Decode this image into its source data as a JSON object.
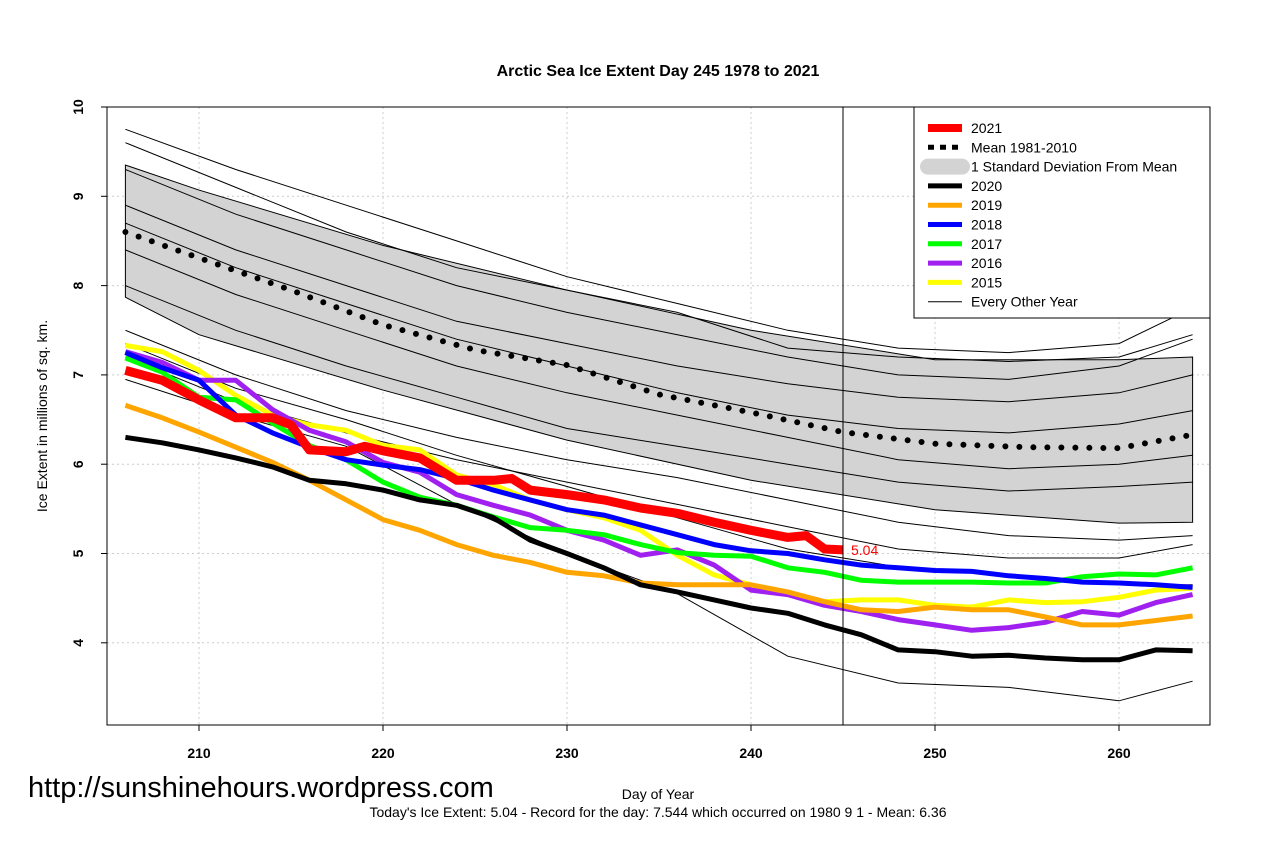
{
  "chart_data": {
    "type": "line",
    "title": "Arctic Sea Ice Extent Day 245 1978 to 2021",
    "xlabel": "Day of Year",
    "ylabel": "Ice Extent in millions of sq. km.",
    "xlim": [
      205,
      265
    ],
    "ylim": [
      3.08,
      10
    ],
    "xticks": [
      210,
      220,
      230,
      240,
      250,
      260
    ],
    "yticks": [
      4,
      5,
      6,
      7,
      8,
      9,
      10
    ],
    "grid": true,
    "legend_position": "top-right",
    "current_day_marker": 245,
    "end_label": "5.04",
    "x": [
      206,
      208,
      210,
      212,
      214,
      216,
      218,
      220,
      222,
      224,
      226,
      228,
      230,
      232,
      234,
      236,
      238,
      240,
      242,
      244,
      246,
      248,
      250,
      252,
      254,
      256,
      258,
      260,
      262,
      264
    ],
    "sd_band": {
      "name": "1 Standard Deviation From Mean",
      "color": "#d3d3d3",
      "x": [
        206,
        210,
        220,
        230,
        240,
        250,
        260,
        264
      ],
      "upper": [
        9.35,
        9.07,
        8.45,
        7.95,
        7.5,
        7.17,
        7.17,
        7.2
      ],
      "lower": [
        7.87,
        7.45,
        6.83,
        6.27,
        5.82,
        5.49,
        5.34,
        5.35
      ]
    },
    "mean": {
      "name": "Mean 1981-2010",
      "color": "#000000",
      "x": [
        206,
        210,
        215,
        220,
        225,
        230,
        235,
        240,
        245,
        250,
        255,
        260,
        264
      ],
      "values": [
        8.6,
        8.31,
        7.95,
        7.56,
        7.28,
        7.11,
        6.78,
        6.58,
        6.36,
        6.23,
        6.19,
        6.18,
        6.33
      ]
    },
    "series": [
      {
        "name": "2021",
        "color": "#ff0000",
        "x": [
          206,
          208,
          210,
          212,
          214,
          215,
          216,
          218,
          219,
          220,
          222,
          224,
          226,
          227,
          228,
          230,
          232,
          234,
          236,
          238,
          240,
          242,
          243,
          244,
          245
        ],
        "values": [
          7.05,
          6.94,
          6.72,
          6.52,
          6.52,
          6.44,
          6.16,
          6.14,
          6.2,
          6.15,
          6.07,
          5.82,
          5.82,
          5.84,
          5.71,
          5.66,
          5.6,
          5.51,
          5.45,
          5.35,
          5.26,
          5.18,
          5.2,
          5.05,
          5.04
        ]
      },
      {
        "name": "2020",
        "color": "#000000",
        "values": [
          6.3,
          6.24,
          6.16,
          6.07,
          5.97,
          5.82,
          5.78,
          5.71,
          5.6,
          5.54,
          5.4,
          5.15,
          5.0,
          4.84,
          4.65,
          4.57,
          4.48,
          4.39,
          4.33,
          4.2,
          4.09,
          3.92,
          3.9,
          3.85,
          3.86,
          3.83,
          3.81,
          3.81,
          3.92,
          3.91
        ]
      },
      {
        "name": "2019",
        "color": "#ffa500",
        "values": [
          6.66,
          6.52,
          6.36,
          6.19,
          6.02,
          5.82,
          5.6,
          5.38,
          5.26,
          5.1,
          4.98,
          4.9,
          4.79,
          4.75,
          4.67,
          4.65,
          4.65,
          4.65,
          4.57,
          4.46,
          4.37,
          4.35,
          4.4,
          4.37,
          4.37,
          4.29,
          4.2,
          4.2,
          4.25,
          4.3
        ]
      },
      {
        "name": "2018",
        "color": "#0000ff",
        "values": [
          7.25,
          7.08,
          6.94,
          6.55,
          6.35,
          6.19,
          6.05,
          5.99,
          5.94,
          5.84,
          5.71,
          5.6,
          5.49,
          5.43,
          5.32,
          5.21,
          5.1,
          5.03,
          5.0,
          4.93,
          4.87,
          4.84,
          4.81,
          4.8,
          4.75,
          4.72,
          4.68,
          4.67,
          4.65,
          4.62
        ]
      },
      {
        "name": "2017",
        "color": "#00ff00",
        "values": [
          7.19,
          7.03,
          6.75,
          6.72,
          6.46,
          6.21,
          6.05,
          5.8,
          5.63,
          5.54,
          5.41,
          5.29,
          5.26,
          5.21,
          5.1,
          5.01,
          4.98,
          4.97,
          4.84,
          4.79,
          4.7,
          4.68,
          4.68,
          4.68,
          4.67,
          4.67,
          4.74,
          4.77,
          4.76,
          4.84
        ]
      },
      {
        "name": "2016",
        "color": "#a020f0",
        "values": [
          7.26,
          7.14,
          6.94,
          6.94,
          6.61,
          6.38,
          6.25,
          6.02,
          5.91,
          5.66,
          5.54,
          5.43,
          5.26,
          5.15,
          4.98,
          5.04,
          4.87,
          4.59,
          4.54,
          4.42,
          4.35,
          4.26,
          4.2,
          4.14,
          4.17,
          4.23,
          4.35,
          4.31,
          4.45,
          4.54
        ]
      },
      {
        "name": "2015",
        "color": "#ffff00",
        "values": [
          7.33,
          7.26,
          7.05,
          6.77,
          6.55,
          6.44,
          6.38,
          6.21,
          6.16,
          5.88,
          5.77,
          5.6,
          5.49,
          5.4,
          5.26,
          4.98,
          4.76,
          4.65,
          4.54,
          4.46,
          4.48,
          4.48,
          4.42,
          4.4,
          4.48,
          4.45,
          4.46,
          4.51,
          4.59,
          4.61
        ]
      }
    ],
    "other_years": {
      "name": "Every Other Year",
      "x": [
        206,
        212,
        218,
        224,
        230,
        236,
        242,
        248,
        254,
        260,
        264
      ],
      "lines": [
        [
          9.75,
          9.3,
          8.9,
          8.5,
          8.1,
          7.8,
          7.5,
          7.3,
          7.25,
          7.35,
          7.75
        ],
        [
          9.6,
          9.1,
          8.6,
          8.2,
          7.95,
          7.7,
          7.3,
          7.2,
          7.15,
          7.2,
          7.45
        ],
        [
          9.3,
          8.8,
          8.4,
          8.0,
          7.7,
          7.45,
          7.2,
          7.0,
          6.95,
          7.1,
          7.4
        ],
        [
          8.9,
          8.4,
          8.0,
          7.6,
          7.35,
          7.1,
          6.9,
          6.75,
          6.7,
          6.8,
          7.0
        ],
        [
          8.7,
          8.2,
          7.8,
          7.4,
          7.1,
          6.8,
          6.55,
          6.4,
          6.35,
          6.45,
          6.6
        ],
        [
          8.4,
          7.9,
          7.5,
          7.1,
          6.8,
          6.55,
          6.3,
          6.05,
          5.95,
          6.0,
          6.1
        ],
        [
          8.0,
          7.5,
          7.1,
          6.75,
          6.4,
          6.2,
          6.0,
          5.8,
          5.7,
          5.75,
          5.8
        ],
        [
          7.5,
          7.0,
          6.6,
          6.3,
          6.05,
          5.85,
          5.6,
          5.35,
          5.2,
          5.15,
          5.2
        ],
        [
          7.35,
          6.85,
          6.5,
          6.1,
          5.75,
          5.4,
          5.05,
          4.85,
          4.75,
          4.65,
          4.65
        ],
        [
          7.2,
          6.7,
          6.35,
          6.05,
          5.8,
          5.55,
          5.3,
          5.05,
          4.95,
          4.95,
          5.1
        ],
        [
          6.95,
          6.55,
          6.2,
          5.55,
          5.0,
          4.55,
          3.85,
          3.55,
          3.5,
          3.35,
          3.57
        ]
      ]
    }
  },
  "watermark": "http://sunshinehours.wordpress.com",
  "footer": "Today's Ice Extent: 5.04  - Record for the day: 7.544 which occurred on 1980 9 1  - Mean: 6.36"
}
